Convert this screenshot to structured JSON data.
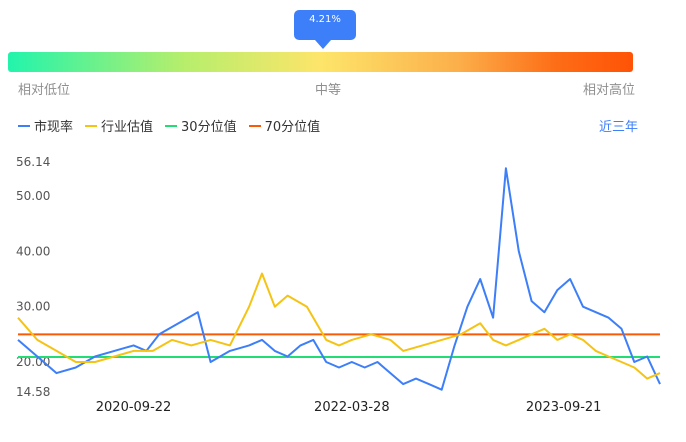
{
  "gauge": {
    "tooltip": "4.21%",
    "label_low": "相对低位",
    "label_mid": "中等",
    "label_high": "相对高位"
  },
  "legend": {
    "items": [
      {
        "label": "市现率",
        "color": "#3d7ef9"
      },
      {
        "label": "行业估值",
        "color": "#f5c314"
      },
      {
        "label": "30分位值",
        "color": "#22dc74"
      },
      {
        "label": "70分位值",
        "color": "#fb5a05"
      }
    ]
  },
  "range_link": "近三年",
  "chart_data": {
    "type": "line",
    "yticks": [
      "56.14",
      "50.00",
      "40.00",
      "30.00",
      "20.00",
      "14.58"
    ],
    "ylim": [
      14.58,
      56.14
    ],
    "xticks": [
      "2020-09-22",
      "2022-03-28",
      "2023-09-21"
    ],
    "reference_lines": [
      {
        "name": "30分位值",
        "value": 20.9
      },
      {
        "name": "70分位值",
        "value": 25.0
      }
    ],
    "series": [
      {
        "name": "市现率",
        "color": "#3d7ef9",
        "x": [
          0,
          3,
          6,
          9,
          12,
          15,
          18,
          20,
          22,
          25,
          28,
          30,
          33,
          36,
          38,
          40,
          42,
          44,
          46,
          48,
          50,
          52,
          54,
          56,
          58,
          60,
          62,
          64,
          66,
          68,
          70,
          72,
          74,
          76,
          78,
          80,
          82,
          84,
          86,
          88,
          90,
          92,
          94,
          96,
          98,
          100
        ],
        "values": [
          24,
          21,
          18,
          19,
          21,
          22,
          23,
          22,
          25,
          27,
          29,
          20,
          22,
          23,
          24,
          22,
          21,
          23,
          24,
          20,
          19,
          20,
          19,
          20,
          18,
          16,
          17,
          16,
          15,
          23,
          30,
          35,
          28,
          55,
          40,
          31,
          29,
          33,
          35,
          30,
          29,
          28,
          26,
          20,
          21,
          16
        ]
      },
      {
        "name": "行业估值",
        "color": "#f5c314",
        "x": [
          0,
          3,
          6,
          9,
          12,
          15,
          18,
          21,
          24,
          27,
          30,
          33,
          36,
          38,
          40,
          42,
          45,
          48,
          50,
          52,
          55,
          58,
          60,
          63,
          66,
          69,
          72,
          74,
          76,
          78,
          80,
          82,
          84,
          86,
          88,
          90,
          92,
          94,
          96,
          98,
          100
        ],
        "values": [
          28,
          24,
          22,
          20,
          20,
          21,
          22,
          22,
          24,
          23,
          24,
          23,
          30,
          36,
          30,
          32,
          30,
          24,
          23,
          24,
          25,
          24,
          22,
          23,
          24,
          25,
          27,
          24,
          23,
          24,
          25,
          26,
          24,
          25,
          24,
          22,
          21,
          20,
          19,
          17,
          18
        ]
      }
    ]
  }
}
